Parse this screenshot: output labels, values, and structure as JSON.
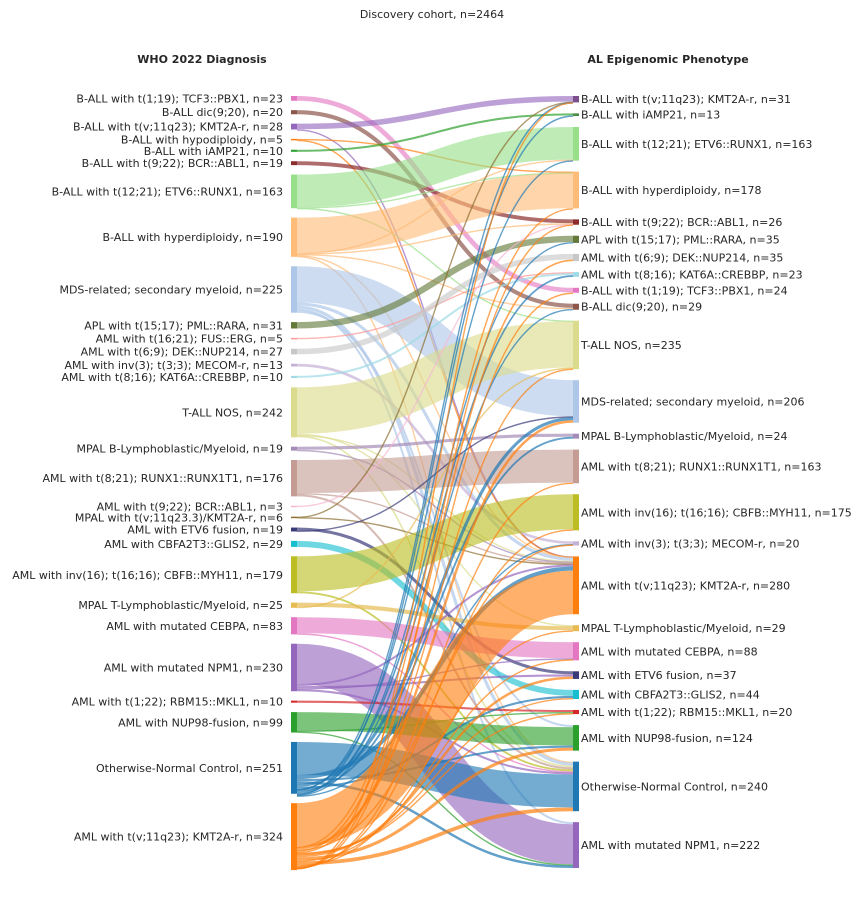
{
  "chart_data": {
    "type": "sankey",
    "title": "Discovery cohort, n=2464",
    "left_axis_title": "WHO 2022 Diagnosis",
    "right_axis_title": "AL Epigenomic Phenotype",
    "left_nodes": [
      {
        "label": "B-ALL with t(1;19); TCF3::PBX1, n=23",
        "n": 23,
        "color": "#e377c2"
      },
      {
        "label": "B-ALL dic(9;20), n=20",
        "n": 20,
        "color": "#8c564b"
      },
      {
        "label": "B-ALL with t(v;11q23); KMT2A-r, n=28",
        "n": 28,
        "color": "#9467bd"
      },
      {
        "label": "B-ALL with hypodiploidy, n=5",
        "n": 5,
        "color": "#ff7f0e"
      },
      {
        "label": "B-ALL with iAMP21, n=10",
        "n": 10,
        "color": "#2ca02c"
      },
      {
        "label": "B-ALL with t(9;22); BCR::ABL1, n=19",
        "n": 19,
        "color": "#8c2d2d"
      },
      {
        "label": "B-ALL with t(12;21); ETV6::RUNX1, n=163",
        "n": 163,
        "color": "#98df8a"
      },
      {
        "label": "B-ALL with hyperdiploidy, n=190",
        "n": 190,
        "color": "#ffbb78"
      },
      {
        "label": "MDS-related; secondary myeloid, n=225",
        "n": 225,
        "color": "#aec7e8"
      },
      {
        "label": "APL with t(15;17); PML::RARA, n=31",
        "n": 31,
        "color": "#637939"
      },
      {
        "label": "AML with t(16;21); FUS::ERG, n=5",
        "n": 5,
        "color": "#ff9896"
      },
      {
        "label": "AML with t(6;9); DEK::NUP214, n=27",
        "n": 27,
        "color": "#c7c7c7"
      },
      {
        "label": "AML with inv(3); t(3;3); MECOM-r, n=13",
        "n": 13,
        "color": "#c5b0d5"
      },
      {
        "label": "AML with t(8;16); KAT6A::CREBBP, n=10",
        "n": 10,
        "color": "#9edae5"
      },
      {
        "label": "T-ALL NOS, n=242",
        "n": 242,
        "color": "#dbdb8d"
      },
      {
        "label": "MPAL B-Lymphoblastic/Myeloid, n=19",
        "n": 19,
        "color": "#a58bb8"
      },
      {
        "label": "AML with t(8;21); RUNX1::RUNX1T1, n=176",
        "n": 176,
        "color": "#c49c94"
      },
      {
        "label": "AML with t(9;22); BCR::ABL1, n=3",
        "n": 3,
        "color": "#f7b6d2"
      },
      {
        "label": "MPAL with t(v;11q23.3)/KMT2A-r, n=6",
        "n": 6,
        "color": "#8c6d31"
      },
      {
        "label": "AML with ETV6 fusion, n=19",
        "n": 19,
        "color": "#393b79"
      },
      {
        "label": "AML with CBFA2T3::GLIS2, n=29",
        "n": 29,
        "color": "#17becf"
      },
      {
        "label": "AML with inv(16); t(16;16); CBFB::MYH11, n=179",
        "n": 179,
        "color": "#bcbd22"
      },
      {
        "label": "MPAL T-Lymphoblastic/Myeloid, n=25",
        "n": 25,
        "color": "#e7ba52"
      },
      {
        "label": "AML with mutated CEBPA, n=83",
        "n": 83,
        "color": "#e377c2"
      },
      {
        "label": "AML with mutated NPM1, n=230",
        "n": 230,
        "color": "#9467bd"
      },
      {
        "label": "AML with t(1;22); RBM15::MKL1, n=10",
        "n": 10,
        "color": "#d62728"
      },
      {
        "label": "AML with NUP98-fusion, n=99",
        "n": 99,
        "color": "#2ca02c"
      },
      {
        "label": "Otherwise-Normal Control, n=251",
        "n": 251,
        "color": "#1f77b4"
      },
      {
        "label": "AML with t(v;11q23); KMT2A-r, n=324",
        "n": 324,
        "color": "#ff7f0e"
      }
    ],
    "right_nodes": [
      {
        "label": "B-ALL with t(v;11q23); KMT2A-r, n=31",
        "n": 31,
        "color": "#7b4f8e"
      },
      {
        "label": "B-ALL with iAMP21, n=13",
        "n": 13,
        "color": "#4a8a4a"
      },
      {
        "label": "B-ALL with t(12;21); ETV6::RUNX1, n=163",
        "n": 163,
        "color": "#98df8a"
      },
      {
        "label": "B-ALL with hyperdiploidy, n=178",
        "n": 178,
        "color": "#ffbb78"
      },
      {
        "label": "B-ALL with t(9;22); BCR::ABL1, n=26",
        "n": 26,
        "color": "#8c2d2d"
      },
      {
        "label": "APL with t(15;17); PML::RARA, n=35",
        "n": 35,
        "color": "#637939"
      },
      {
        "label": "AML with t(6;9); DEK::NUP214, n=35",
        "n": 35,
        "color": "#c7c7c7"
      },
      {
        "label": "AML with t(8;16); KAT6A::CREBBP, n=23",
        "n": 23,
        "color": "#9edae5"
      },
      {
        "label": "B-ALL with t(1;19); TCF3::PBX1, n=24",
        "n": 24,
        "color": "#e377c2"
      },
      {
        "label": "B-ALL dic(9;20), n=29",
        "n": 29,
        "color": "#8c564b"
      },
      {
        "label": "T-ALL NOS, n=235",
        "n": 235,
        "color": "#dbdb8d"
      },
      {
        "label": "MDS-related; secondary myeloid, n=206",
        "n": 206,
        "color": "#aec7e8"
      },
      {
        "label": "MPAL B-Lymphoblastic/Myeloid, n=24",
        "n": 24,
        "color": "#a58bb8"
      },
      {
        "label": "AML with t(8;21); RUNX1::RUNX1T1, n=163",
        "n": 163,
        "color": "#c49c94"
      },
      {
        "label": "AML with inv(16); t(16;16); CBFB::MYH11, n=175",
        "n": 175,
        "color": "#bcbd22"
      },
      {
        "label": "AML with inv(3); t(3;3); MECOM-r, n=20",
        "n": 20,
        "color": "#c5b0d5"
      },
      {
        "label": "AML with t(v;11q23); KMT2A-r, n=280",
        "n": 280,
        "color": "#ff7f0e"
      },
      {
        "label": "MPAL T-Lymphoblastic/Myeloid, n=29",
        "n": 29,
        "color": "#e7ba52"
      },
      {
        "label": "AML with mutated CEBPA, n=88",
        "n": 88,
        "color": "#e377c2"
      },
      {
        "label": "AML with ETV6 fusion, n=37",
        "n": 37,
        "color": "#393b79"
      },
      {
        "label": "AML with CBFA2T3::GLIS2, n=44",
        "n": 44,
        "color": "#17becf"
      },
      {
        "label": "AML with t(1;22); RBM15::MKL1, n=20",
        "n": 20,
        "color": "#d62728"
      },
      {
        "label": "AML with NUP98-fusion, n=124",
        "n": 124,
        "color": "#2ca02c"
      },
      {
        "label": "Otherwise-Normal Control, n=240",
        "n": 240,
        "color": "#1f77b4"
      },
      {
        "label": "AML with mutated NPM1, n=222",
        "n": 222,
        "color": "#9467bd"
      }
    ],
    "flows": [
      [
        "B-ALL with t(1;19); TCF3::PBX1, n=23",
        "B-ALL with t(1;19); TCF3::PBX1, n=24",
        23
      ],
      [
        "B-ALL dic(9;20), n=20",
        "B-ALL dic(9;20), n=29",
        20
      ],
      [
        "B-ALL with t(v;11q23); KMT2A-r, n=28",
        "B-ALL with t(v;11q23); KMT2A-r, n=31",
        27
      ],
      [
        "B-ALL with t(v;11q23); KMT2A-r, n=28",
        "AML with t(v;11q23); KMT2A-r, n=280",
        1
      ],
      [
        "B-ALL with hypodiploidy, n=5",
        "B-ALL with hyperdiploidy, n=178",
        4
      ],
      [
        "B-ALL with hypodiploidy, n=5",
        "AML with t(v;11q23); KMT2A-r, n=280",
        1
      ],
      [
        "B-ALL with iAMP21, n=10",
        "B-ALL with iAMP21, n=13",
        10
      ],
      [
        "B-ALL with t(9;22); BCR::ABL1, n=19",
        "B-ALL with t(9;22); BCR::ABL1, n=26",
        19
      ],
      [
        "B-ALL with t(12;21); ETV6::RUNX1, n=163",
        "B-ALL with t(12;21); ETV6::RUNX1, n=163",
        158
      ],
      [
        "B-ALL with t(12;21); ETV6::RUNX1, n=163",
        "B-ALL with hyperdiploidy, n=178",
        3
      ],
      [
        "B-ALL with t(12;21); ETV6::RUNX1, n=163",
        "T-ALL NOS, n=235",
        2
      ],
      [
        "B-ALL with hyperdiploidy, n=190",
        "B-ALL with hyperdiploidy, n=178",
        170
      ],
      [
        "B-ALL with hyperdiploidy, n=190",
        "B-ALL with t(12;21); ETV6::RUNX1, n=163",
        3
      ],
      [
        "B-ALL with hyperdiploidy, n=190",
        "B-ALL with t(9;22); BCR::ABL1, n=26",
        3
      ],
      [
        "B-ALL with hyperdiploidy, n=190",
        "B-ALL dic(9;20), n=29",
        5
      ],
      [
        "B-ALL with hyperdiploidy, n=190",
        "AML with t(v;11q23); KMT2A-r, n=280",
        4
      ],
      [
        "B-ALL with hyperdiploidy, n=190",
        "Otherwise-Normal Control, n=240",
        5
      ],
      [
        "MDS-related; secondary myeloid, n=225",
        "MDS-related; secondary myeloid, n=206",
        175
      ],
      [
        "MDS-related; secondary myeloid, n=225",
        "AML with t(v;11q23); KMT2A-r, n=280",
        15
      ],
      [
        "MDS-related; secondary myeloid, n=225",
        "Otherwise-Normal Control, n=240",
        15
      ],
      [
        "MDS-related; secondary myeloid, n=225",
        "AML with mutated NPM1, n=222",
        10
      ],
      [
        "MDS-related; secondary myeloid, n=225",
        "AML with NUP98-fusion, n=124",
        10
      ],
      [
        "APL with t(15;17); PML::RARA, n=31",
        "APL with t(15;17); PML::RARA, n=35",
        31
      ],
      [
        "AML with t(16;21); FUS::ERG, n=5",
        "AML with t(8;16); KAT6A::CREBBP, n=23",
        5
      ],
      [
        "AML with t(6;9); DEK::NUP214, n=27",
        "AML with t(6;9); DEK::NUP214, n=35",
        27
      ],
      [
        "AML with inv(3); t(3;3); MECOM-r, n=13",
        "AML with inv(3); t(3;3); MECOM-r, n=20",
        13
      ],
      [
        "AML with t(8;16); KAT6A::CREBBP, n=10",
        "AML with t(8;16); KAT6A::CREBBP, n=23",
        10
      ],
      [
        "T-ALL NOS, n=242",
        "T-ALL NOS, n=235",
        225
      ],
      [
        "T-ALL NOS, n=242",
        "MPAL T-Lymphoblastic/Myeloid, n=29",
        5
      ],
      [
        "T-ALL NOS, n=242",
        "AML with t(v;11q23); KMT2A-r, n=280",
        4
      ],
      [
        "T-ALL NOS, n=242",
        "Otherwise-Normal Control, n=240",
        8
      ],
      [
        "MPAL B-Lymphoblastic/Myeloid, n=19",
        "MPAL B-Lymphoblastic/Myeloid, n=24",
        15
      ],
      [
        "MPAL B-Lymphoblastic/Myeloid, n=19",
        "AML with t(v;11q23); KMT2A-r, n=280",
        4
      ],
      [
        "AML with t(8;21); RUNX1::RUNX1T1, n=176",
        "AML with t(8;21); RUNX1::RUNX1T1, n=163",
        160
      ],
      [
        "AML with t(8;21); RUNX1::RUNX1T1, n=176",
        "AML with t(v;11q23); KMT2A-r, n=280",
        6
      ],
      [
        "AML with t(8;21); RUNX1::RUNX1T1, n=176",
        "Otherwise-Normal Control, n=240",
        10
      ],
      [
        "AML with t(9;22); BCR::ABL1, n=3",
        "B-ALL with t(9;22); BCR::ABL1, n=26",
        3
      ],
      [
        "MPAL with t(v;11q23.3)/KMT2A-r, n=6",
        "B-ALL with t(v;11q23); KMT2A-r, n=31",
        2
      ],
      [
        "MPAL with t(v;11q23.3)/KMT2A-r, n=6",
        "AML with t(v;11q23); KMT2A-r, n=280",
        4
      ],
      [
        "AML with ETV6 fusion, n=19",
        "AML with ETV6 fusion, n=37",
        15
      ],
      [
        "AML with ETV6 fusion, n=19",
        "MDS-related; secondary myeloid, n=206",
        4
      ],
      [
        "AML with CBFA2T3::GLIS2, n=29",
        "AML with CBFA2T3::GLIS2, n=44",
        29
      ],
      [
        "AML with inv(16); t(16;16); CBFB::MYH11, n=179",
        "AML with inv(16); t(16;16); CBFB::MYH11, n=175",
        170
      ],
      [
        "AML with inv(16); t(16;16); CBFB::MYH11, n=179",
        "Otherwise-Normal Control, n=240",
        9
      ],
      [
        "MPAL T-Lymphoblastic/Myeloid, n=25",
        "MPAL T-Lymphoblastic/Myeloid, n=29",
        20
      ],
      [
        "MPAL T-Lymphoblastic/Myeloid, n=25",
        "T-ALL NOS, n=235",
        5
      ],
      [
        "AML with mutated CEBPA, n=83",
        "AML with mutated CEBPA, n=88",
        78
      ],
      [
        "AML with mutated CEBPA, n=83",
        "Otherwise-Normal Control, n=240",
        5
      ],
      [
        "AML with mutated NPM1, n=230",
        "AML with mutated NPM1, n=222",
        195
      ],
      [
        "AML with mutated NPM1, n=230",
        "AML with t(v;11q23); KMT2A-r, n=280",
        10
      ],
      [
        "AML with mutated NPM1, n=230",
        "AML with ETV6 fusion, n=37",
        10
      ],
      [
        "AML with mutated NPM1, n=230",
        "AML with mutated CEBPA, n=88",
        5
      ],
      [
        "AML with mutated NPM1, n=230",
        "Otherwise-Normal Control, n=240",
        10
      ],
      [
        "AML with t(1;22); RBM15::MKL1, n=10",
        "AML with t(1;22); RBM15::MKL1, n=20",
        10
      ],
      [
        "AML with NUP98-fusion, n=99",
        "AML with NUP98-fusion, n=124",
        89
      ],
      [
        "AML with NUP98-fusion, n=99",
        "AML with t(1;22); RBM15::MKL1, n=20",
        5
      ],
      [
        "AML with NUP98-fusion, n=99",
        "AML with mutated NPM1, n=222",
        5
      ],
      [
        "Otherwise-Normal Control, n=251",
        "Otherwise-Normal Control, n=240",
        160
      ],
      [
        "Otherwise-Normal Control, n=251",
        "AML with t(v;11q23); KMT2A-r, n=280",
        20
      ],
      [
        "Otherwise-Normal Control, n=251",
        "AML with NUP98-fusion, n=124",
        10
      ],
      [
        "Otherwise-Normal Control, n=251",
        "AML with mutated NPM1, n=222",
        12
      ],
      [
        "Otherwise-Normal Control, n=251",
        "MDS-related; secondary myeloid, n=206",
        15
      ],
      [
        "Otherwise-Normal Control, n=251",
        "AML with CBFA2T3::GLIS2, n=44",
        10
      ],
      [
        "Otherwise-Normal Control, n=251",
        "B-ALL with t(12;21); ETV6::RUNX1, n=163",
        2
      ],
      [
        "Otherwise-Normal Control, n=251",
        "B-ALL with t(v;11q23); KMT2A-r, n=31",
        2
      ],
      [
        "Otherwise-Normal Control, n=251",
        "MPAL B-Lymphoblastic/Myeloid, n=24",
        9
      ],
      [
        "Otherwise-Normal Control, n=251",
        "AML with t(8;16); KAT6A::CREBBP, n=23",
        8
      ],
      [
        "Otherwise-Normal Control, n=251",
        "APL with t(15;17); PML::RARA, n=35",
        4
      ],
      [
        "Otherwise-Normal Control, n=251",
        "B-ALL with iAMP21, n=13",
        3
      ],
      [
        "Otherwise-Normal Control, n=251",
        "B-ALL dic(9;20), n=29",
        4
      ],
      [
        "Otherwise-Normal Control, n=251",
        "AML with inv(3); t(3;3); MECOM-r, n=20",
        2
      ],
      [
        "AML with t(v;11q23); KMT2A-r, n=324",
        "AML with t(v;11q23); KMT2A-r, n=280",
        211
      ],
      [
        "AML with t(v;11q23); KMT2A-r, n=324",
        "B-ALL with hyperdiploidy, n=178",
        1
      ],
      [
        "AML with t(v;11q23); KMT2A-r, n=324",
        "MDS-related; secondary myeloid, n=206",
        12
      ],
      [
        "AML with t(v;11q23); KMT2A-r, n=324",
        "AML with inv(3); t(3;3); MECOM-r, n=20",
        5
      ],
      [
        "AML with t(v;11q23); KMT2A-r, n=324",
        "AML with t(6;9); DEK::NUP214, n=35",
        8
      ],
      [
        "AML with t(v;11q23); KMT2A-r, n=324",
        "T-ALL NOS, n=235",
        3
      ],
      [
        "AML with t(v;11q23); KMT2A-r, n=324",
        "AML with t(1;22); RBM15::MKL1, n=20",
        5
      ],
      [
        "AML with t(v;11q23); KMT2A-r, n=324",
        "AML with CBFA2T3::GLIS2, n=44",
        5
      ],
      [
        "AML with t(v;11q23); KMT2A-r, n=324",
        "AML with ETV6 fusion, n=37",
        12
      ],
      [
        "AML with t(v;11q23); KMT2A-r, n=324",
        "AML with NUP98-fusion, n=124",
        15
      ],
      [
        "AML with t(v;11q23); KMT2A-r, n=324",
        "AML with mutated CEBPA, n=88",
        5
      ],
      [
        "AML with t(v;11q23); KMT2A-r, n=324",
        "Otherwise-Normal Control, n=240",
        18
      ],
      [
        "AML with t(v;11q23); KMT2A-r, n=324",
        "MPAL T-Lymphoblastic/Myeloid, n=29",
        4
      ],
      [
        "AML with t(v;11q23); KMT2A-r, n=324",
        "AML with inv(16); t(16;16); CBFB::MYH11, n=175",
        5
      ],
      [
        "AML with t(v;11q23); KMT2A-r, n=324",
        "AML with t(8;21); RUNX1::RUNX1T1, n=163",
        3
      ],
      [
        "AML with t(v;11q23); KMT2A-r, n=324",
        "B-ALL with t(9;22); BCR::ABL1, n=26",
        1
      ],
      [
        "AML with t(v;11q23); KMT2A-r, n=324",
        "B-ALL with t(1;19); TCF3::PBX1, n=24",
        1
      ],
      [
        "AML with t(v;11q23); KMT2A-r, n=324",
        "B-ALL with t(v;11q23); KMT2A-r, n=31",
        1
      ],
      [
        "AML with t(v;11q23); KMT2A-r, n=324",
        "MPAL B-Lymphoblastic/Myeloid, n=24",
        0
      ],
      [
        "AML with t(v;11q23); KMT2A-r, n=324",
        "AML with mutated NPM1, n=222",
        0
      ]
    ]
  }
}
